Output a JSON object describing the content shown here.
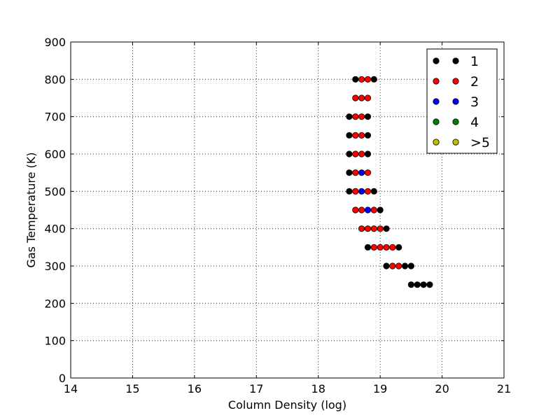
{
  "chart_data": {
    "type": "scatter",
    "title": "",
    "xlabel": "Column Density (log)",
    "ylabel": "Gas Temperature (K)",
    "xlim": [
      14,
      21
    ],
    "ylim": [
      0,
      900
    ],
    "xticks": [
      14,
      15,
      16,
      17,
      18,
      19,
      20,
      21
    ],
    "yticks": [
      0,
      100,
      200,
      300,
      400,
      500,
      600,
      700,
      800,
      900
    ],
    "grid": true,
    "legend_position": "top-right",
    "series": [
      {
        "name": "1",
        "color": "#000000",
        "points": [
          [
            18.6,
            800
          ],
          [
            18.9,
            800
          ],
          [
            18.5,
            700
          ],
          [
            18.8,
            700
          ],
          [
            18.5,
            650
          ],
          [
            18.8,
            650
          ],
          [
            18.5,
            600
          ],
          [
            18.8,
            600
          ],
          [
            18.5,
            550
          ],
          [
            18.5,
            500
          ],
          [
            18.9,
            500
          ],
          [
            19.0,
            450
          ],
          [
            19.1,
            400
          ],
          [
            18.8,
            350
          ],
          [
            19.3,
            350
          ],
          [
            19.1,
            300
          ],
          [
            19.4,
            300
          ],
          [
            19.5,
            300
          ],
          [
            19.5,
            250
          ],
          [
            19.6,
            250
          ],
          [
            19.7,
            250
          ],
          [
            19.8,
            250
          ]
        ]
      },
      {
        "name": "2",
        "color": "#ff0000",
        "points": [
          [
            18.7,
            800
          ],
          [
            18.8,
            800
          ],
          [
            18.6,
            750
          ],
          [
            18.7,
            750
          ],
          [
            18.8,
            750
          ],
          [
            18.6,
            700
          ],
          [
            18.7,
            700
          ],
          [
            18.6,
            650
          ],
          [
            18.7,
            650
          ],
          [
            18.6,
            600
          ],
          [
            18.7,
            600
          ],
          [
            18.6,
            550
          ],
          [
            18.8,
            550
          ],
          [
            18.6,
            500
          ],
          [
            18.8,
            500
          ],
          [
            18.6,
            450
          ],
          [
            18.7,
            450
          ],
          [
            18.9,
            450
          ],
          [
            18.7,
            400
          ],
          [
            18.8,
            400
          ],
          [
            18.9,
            400
          ],
          [
            19.0,
            400
          ],
          [
            18.9,
            350
          ],
          [
            19.0,
            350
          ],
          [
            19.1,
            350
          ],
          [
            19.2,
            350
          ],
          [
            19.2,
            300
          ],
          [
            19.3,
            300
          ]
        ]
      },
      {
        "name": "3",
        "color": "#0000ff",
        "points": [
          [
            18.7,
            550
          ],
          [
            18.7,
            500
          ],
          [
            18.8,
            450
          ]
        ]
      },
      {
        "name": "4",
        "color": "#008000",
        "points": []
      },
      {
        "name": ">5",
        "color": "#bfbf00",
        "points": []
      }
    ]
  }
}
